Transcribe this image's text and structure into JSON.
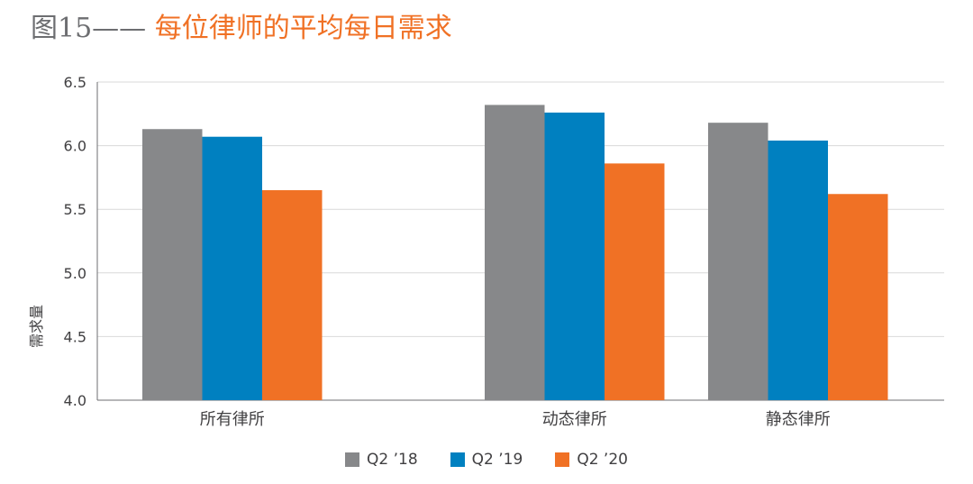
{
  "title": {
    "prefix": "图15——",
    "main": "每位律师的平均每日需求"
  },
  "chart_data": {
    "type": "bar",
    "title": "图15—— 每位律师的平均每日需求",
    "xlabel": "",
    "ylabel": "需求量",
    "ylim": [
      4.0,
      6.5
    ],
    "yticks": [
      "4.0",
      "4.5",
      "5.0",
      "5.5",
      "6.0",
      "6.5"
    ],
    "grid": true,
    "legend_position": "bottom",
    "categories": [
      "所有律所",
      "动态律所",
      "静态律所"
    ],
    "series": [
      {
        "name": "Q2 ’18",
        "color": "#87888a",
        "values": [
          6.13,
          6.32,
          6.18
        ]
      },
      {
        "name": "Q2 ’19",
        "color": "#0080c0",
        "values": [
          6.07,
          6.26,
          6.04
        ]
      },
      {
        "name": "Q2 ’20",
        "color": "#f07125",
        "values": [
          5.65,
          5.86,
          5.62
        ]
      }
    ]
  }
}
